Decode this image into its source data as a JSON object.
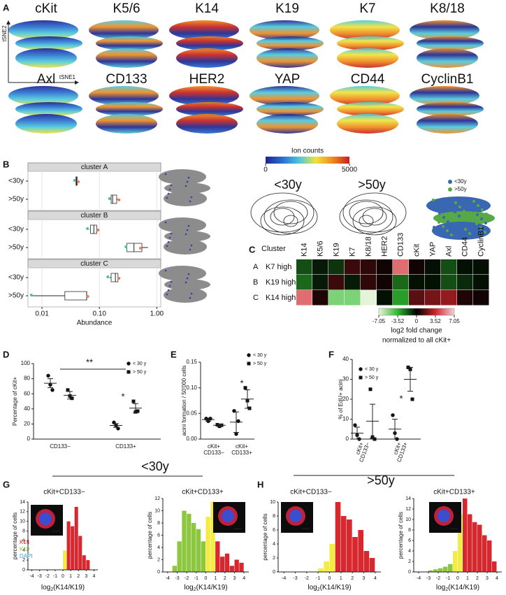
{
  "chart_data": [
    {
      "type": "tsne_grid",
      "panel": "A",
      "markers": [
        "cKit",
        "K5/6",
        "K14",
        "K19",
        "K7",
        "K8/18",
        "Axl",
        "CD133",
        "HER2",
        "YAP",
        "CD44",
        "CyclinB1"
      ],
      "xlabel": "tSNE1",
      "ylabel": "tSNE2"
    },
    {
      "type": "colorbar",
      "title": "Ion counts",
      "ticks": [
        0,
        5000
      ],
      "colors": [
        "#1c2490",
        "#2a6fd0",
        "#4cc8dc",
        "#efe33a",
        "#ef8a1d",
        "#c6201d"
      ]
    },
    {
      "type": "density",
      "titles": [
        "<30y",
        ">50y"
      ],
      "series": [
        {
          "name": "<30y",
          "color": "#3a67b1"
        },
        {
          "name": ">50y",
          "color": "#57a947"
        }
      ]
    },
    {
      "type": "boxplot",
      "panel": "B",
      "xlabel": "Abundance",
      "log_x": true,
      "xlim": [
        0.0057,
        1.17
      ],
      "xticks": [
        0.01,
        {
          "value": 0.1,
          "label": "0.10"
        },
        {
          "value": 1,
          "label": "1.00"
        }
      ],
      "point_colors": [
        "#4fc0a8",
        "#f07c5a"
      ],
      "facets": [
        {
          "title": "cluster A",
          "groups": [
            {
              "name": "<30y",
              "box": [
                0.038,
                0.039,
                0.04,
                0.041,
                0.042
              ],
              "points": [
                0.037,
                0.043
              ]
            },
            {
              "name": ">50y",
              "box": [
                0.15,
                0.16,
                0.17,
                0.2,
                0.21
              ],
              "points": [
                0.15,
                0.22
              ]
            }
          ]
        },
        {
          "title": "cluster B",
          "groups": [
            {
              "name": "<30y",
              "box": [
                0.068,
                0.07,
                0.08,
                0.09,
                0.095
              ],
              "points": [
                0.062,
                0.095
              ]
            },
            {
              "name": ">50y",
              "box": [
                0.28,
                0.3,
                0.4,
                0.55,
                0.7
              ],
              "points": [
                0.29,
                0.52
              ]
            }
          ]
        },
        {
          "title": "cluster C",
          "groups": [
            {
              "name": "<30y",
              "box": [
                0.15,
                0.16,
                0.19,
                0.21,
                0.22
              ],
              "points": [
                0.14,
                0.22
              ]
            },
            {
              "name": ">50y",
              "box": [
                0.0065,
                0.025,
                0.06,
                0.06,
                0.062
              ],
              "points": [
                0.0065,
                0.063
              ]
            }
          ]
        }
      ]
    },
    {
      "type": "heatmap",
      "panel": "C",
      "row_header": "Cluster",
      "columns": [
        "K14",
        "K5/6",
        "K19",
        "K7",
        "K8/18",
        "HER2",
        "CD133",
        "cKit",
        "YAP",
        "Axl",
        "CD44",
        "CyclinB1"
      ],
      "rows": [
        {
          "cluster": "A",
          "label": "K7 high"
        },
        {
          "cluster": "B",
          "label": "K19 high"
        },
        {
          "cluster": "C",
          "label": "K14 high"
        }
      ],
      "values": [
        [
          -1.5,
          -0.5,
          -1,
          1,
          0.8,
          0.3,
          5,
          0.3,
          -0.3,
          -1.5,
          -0.3,
          -0.3
        ],
        [
          -2,
          -0.5,
          1,
          -0.5,
          0.8,
          0.3,
          -2,
          -0.3,
          -0.3,
          -1.5,
          -0.8,
          -0.3
        ],
        [
          5,
          0.5,
          -5,
          -5,
          -7,
          -0.3,
          -3,
          1.5,
          2,
          2.5,
          0.5,
          0.3
        ]
      ],
      "lim": [
        -7.05,
        7.05
      ],
      "colorbar_ticks": [
        -7.05,
        -3.52,
        0,
        3.52,
        7.05
      ],
      "colorbar_label": "log2 fold change",
      "colorbar_label2": "normalized to all cKit+"
    },
    {
      "type": "dotplot",
      "panel": "D",
      "ylabel": "Percentage of cKit+",
      "ylim": [
        0,
        100
      ],
      "yticks": [
        0,
        20,
        40,
        60,
        80,
        100
      ],
      "categories": [
        [
          "CD133−"
        ],
        [
          "CD133+"
        ]
      ],
      "series": [
        {
          "name": "< 30 y",
          "marker": "circle",
          "points": [
            [
              84,
              72,
              65
            ],
            [
              22,
              18,
              14
            ]
          ],
          "mean": [
            74,
            18
          ],
          "sem": [
            6,
            2.5
          ]
        },
        {
          "name": "> 50 y",
          "marker": "square",
          "points": [
            [
              65,
              57,
              54
            ],
            [
              50,
              36,
              37
            ]
          ],
          "mean": [
            58,
            41
          ],
          "sem": [
            5,
            6
          ]
        }
      ],
      "annotations": [
        "**",
        "*"
      ]
    },
    {
      "type": "dotplot",
      "panel": "E",
      "ylabel": "acini formation / 50'000 cells",
      "ylim": [
        0,
        0.15
      ],
      "yticks": [
        {
          "value": 0,
          "label": "0.00"
        },
        0.05,
        {
          "value": 0.1,
          "label": "0.10"
        },
        0.15
      ],
      "categories": [
        [
          "cKit+",
          "CD133−"
        ],
        [
          "cKit+",
          "CD133+"
        ]
      ],
      "series": [
        {
          "name": "< 30 y",
          "marker": "circle",
          "points": [
            [
              0.04,
              0.035,
              0.04
            ],
            [
              0.055,
              0.01,
              0.035
            ]
          ],
          "mean": [
            0.038,
            0.033
          ],
          "sem": [
            0.003,
            0.02
          ]
        },
        {
          "name": "> 50 y",
          "marker": "square",
          "points": [
            [
              0.028,
              0.025,
              0.027
            ],
            [
              0.1,
              0.075,
              0.06
            ]
          ],
          "mean": [
            0.027,
            0.078
          ],
          "sem": [
            0.002,
            0.018
          ]
        }
      ],
      "annotations": [
        "*"
      ]
    },
    {
      "type": "dotplot",
      "panel": "F",
      "ylabel": "% of EdU+ acini",
      "ylim": [
        0,
        40
      ],
      "yticks": [
        0,
        10,
        20,
        30,
        40
      ],
      "categories": [
        [
          "cKit+",
          "CD133−"
        ],
        [
          "cKit+",
          "CD133+"
        ]
      ],
      "series": [
        {
          "name": "< 30 y",
          "marker": "circle",
          "points": [
            [
              7,
              2,
              0
            ],
            [
              12,
              3,
              0
            ]
          ],
          "mean": [
            3,
            5
          ],
          "sem": [
            3,
            5
          ]
        },
        {
          "name": "> 50 y",
          "marker": "square",
          "points": [
            [
              25,
              1,
              0
            ],
            [
              36,
              35,
              20
            ]
          ],
          "mean": [
            9,
            30
          ],
          "sem": [
            8.5,
            6
          ]
        }
      ],
      "annotations": [
        "*"
      ]
    },
    {
      "type": "histogram_group",
      "panel": "G",
      "header": "<30y",
      "charts": [
        {
          "title": "cKit+CD133−",
          "ylabel": "percentage of cells",
          "xlabel": {
            "base": "log",
            "sub": "2",
            "rest": "(K14/K19)"
          },
          "xlim": [
            -4.5,
            4.5
          ],
          "xticks": [
            -4,
            -3,
            -2,
            -1,
            0,
            1,
            2,
            3,
            4
          ],
          "ylim": [
            0,
            14
          ],
          "yticks": [
            0,
            2,
            4,
            6,
            8,
            10,
            12,
            14
          ],
          "bins": [
            -4,
            -3.5,
            -3,
            -2.5,
            -2,
            -1.5,
            -1,
            -0.5,
            0,
            0.5,
            1,
            1.5,
            2,
            2.5,
            3,
            3.5,
            4
          ],
          "counts": [
            0,
            0,
            0,
            0,
            0,
            0,
            0,
            0,
            4,
            10,
            9,
            13,
            7,
            3,
            2,
            0
          ],
          "bar_colors": [
            "#8dc63f",
            "#8dc63f",
            "#8dc63f",
            "#8dc63f",
            "#8dc63f",
            "#8dc63f",
            "#8dc63f",
            "#f5ec42",
            "#f5ec42",
            "#d7282f",
            "#d7282f",
            "#d7282f",
            "#d7282f",
            "#d7282f",
            "#d7282f",
            "#d7282f"
          ],
          "inset_legend": [
            {
              "name": "K14",
              "color": "#e02020"
            },
            {
              "name": "K19",
              "color": "#8dc63f"
            },
            {
              "name": "DAPI",
              "color": "#3aa0e0"
            }
          ]
        },
        {
          "title": "cKit+CD133+",
          "ylabel": "percentage of cells",
          "xlabel": {
            "base": "log",
            "sub": "2",
            "rest": "(K14/K19)"
          },
          "xlim": [
            -4.5,
            4.5
          ],
          "xticks": [
            -4,
            -3,
            -2,
            -1,
            0,
            1,
            2,
            3,
            4
          ],
          "ylim": [
            0,
            12
          ],
          "yticks": [
            0,
            2,
            4,
            6,
            8,
            10,
            12
          ],
          "bins": [
            -4,
            -3.5,
            -3,
            -2.5,
            -2,
            -1.5,
            -1,
            -0.5,
            0,
            0.5,
            1,
            1.5,
            2,
            2.5,
            3,
            3.5,
            4
          ],
          "counts": [
            0,
            1,
            5,
            10,
            9.5,
            8,
            7,
            5,
            9,
            11.5,
            5,
            2.5,
            3,
            1,
            2,
            1.5
          ],
          "bar_colors": [
            "#8dc63f",
            "#8dc63f",
            "#8dc63f",
            "#8dc63f",
            "#8dc63f",
            "#8dc63f",
            "#8dc63f",
            "#8dc63f",
            "#f5ec42",
            "#f5ec42",
            "#d7282f",
            "#d7282f",
            "#d7282f",
            "#d7282f",
            "#d7282f",
            "#d7282f"
          ]
        }
      ]
    },
    {
      "type": "histogram_group",
      "panel": "H",
      "header": ">50y",
      "charts": [
        {
          "title": "cKit+CD133−",
          "ylabel": "percentage of cells",
          "xlabel": {
            "base": "log",
            "sub": "2",
            "rest": "(K14/K19)"
          },
          "xlim": [
            -4.5,
            4.5
          ],
          "xticks": [
            -4,
            -3,
            -2,
            -1,
            0,
            1,
            2,
            3,
            4
          ],
          "ylim": [
            0,
            10
          ],
          "yticks": [
            0,
            2,
            4,
            6,
            8,
            10
          ],
          "bins": [
            -4,
            -3.5,
            -3,
            -2.5,
            -2,
            -1.5,
            -1,
            -0.5,
            0,
            0.5,
            1,
            1.5,
            2,
            2.5,
            3,
            3.5,
            4
          ],
          "counts": [
            0,
            0,
            0,
            0,
            0,
            0,
            0.5,
            1.5,
            4,
            10,
            8,
            7.5,
            5,
            6,
            3,
            2
          ],
          "bar_colors": [
            "#8dc63f",
            "#8dc63f",
            "#8dc63f",
            "#8dc63f",
            "#8dc63f",
            "#8dc63f",
            "#f5ec42",
            "#f5ec42",
            "#f5ec42",
            "#d7282f",
            "#d7282f",
            "#d7282f",
            "#d7282f",
            "#d7282f",
            "#d7282f",
            "#d7282f"
          ]
        },
        {
          "title": "cKit+CD133+",
          "ylabel": "percentage of cells",
          "xlabel": {
            "base": "log",
            "sub": "2",
            "rest": "(K14/K19)"
          },
          "xlim": [
            -4.5,
            4.5
          ],
          "xticks": [
            -4,
            -3,
            -2,
            -1,
            0,
            1,
            2,
            3,
            4
          ],
          "ylim": [
            0,
            14
          ],
          "yticks": [
            0,
            2,
            4,
            6,
            8,
            10,
            12,
            14
          ],
          "bins": [
            -4,
            -3.5,
            -3,
            -2.5,
            -2,
            -1.5,
            -1,
            -0.5,
            0,
            0.5,
            1,
            1.5,
            2,
            2.5,
            3,
            3.5,
            4
          ],
          "counts": [
            0,
            0,
            0.3,
            0.5,
            0.7,
            1,
            1.5,
            4,
            11,
            14,
            11,
            9.5,
            9,
            7,
            6,
            2
          ],
          "bar_colors": [
            "#8dc63f",
            "#8dc63f",
            "#8dc63f",
            "#8dc63f",
            "#8dc63f",
            "#8dc63f",
            "#8dc63f",
            "#f5ec42",
            "#f5ec42",
            "#d7282f",
            "#d7282f",
            "#d7282f",
            "#d7282f",
            "#d7282f",
            "#d7282f",
            "#d7282f"
          ]
        }
      ]
    }
  ]
}
